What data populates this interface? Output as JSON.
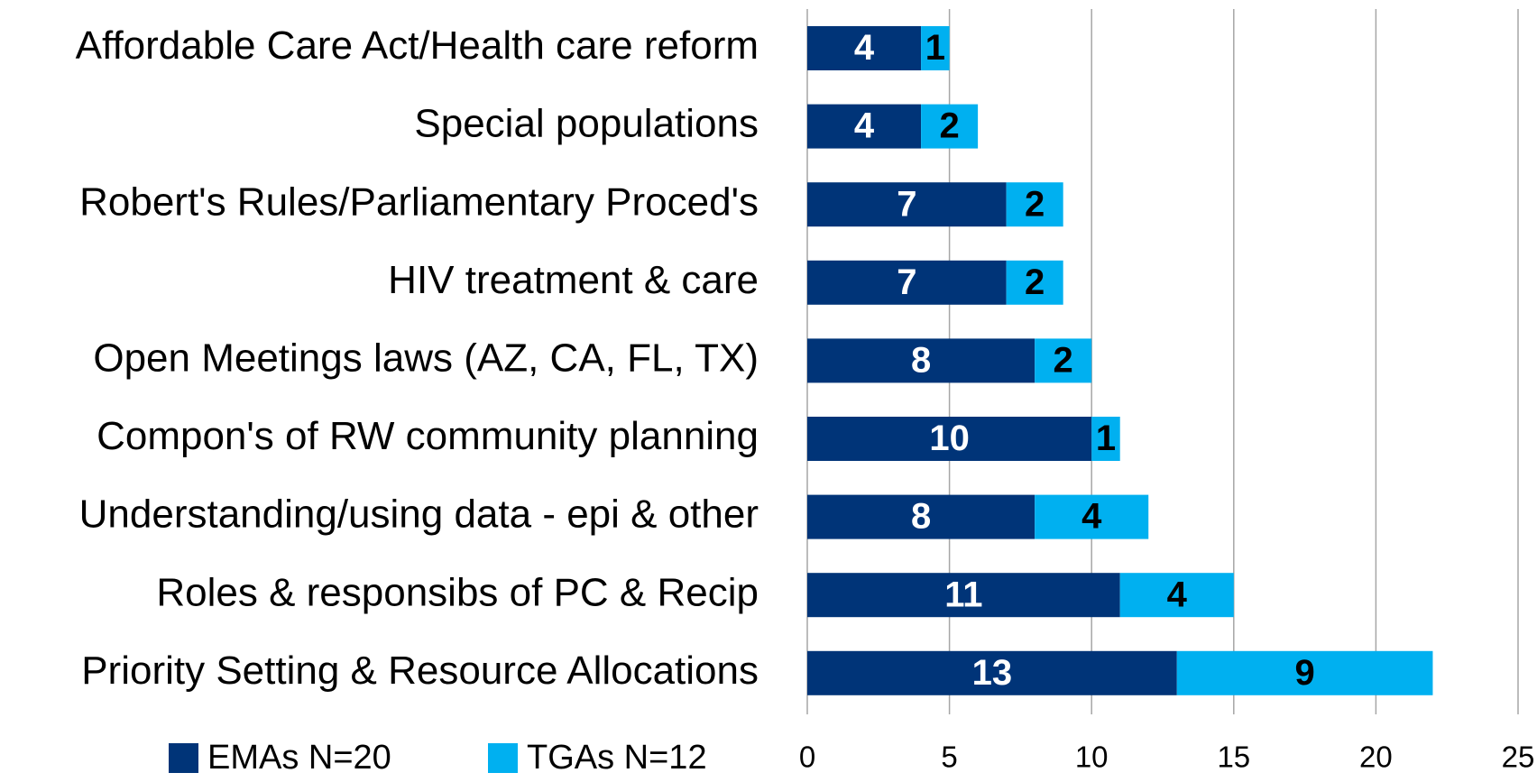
{
  "chart_data": {
    "type": "bar",
    "orientation": "horizontal",
    "stacked": true,
    "categories": [
      "Affordable Care Act/Health care reform",
      "Special populations",
      "Robert's Rules/Parliamentary Proced's",
      "HIV treatment & care",
      "Open Meetings laws (AZ, CA, FL, TX)",
      "Compon's of RW community planning",
      "Understanding/using data - epi & other",
      "Roles & responsibs of PC & Recip",
      "Priority Setting & Resource Allocations"
    ],
    "series": [
      {
        "name": "EMAs N=20",
        "color": "#003478",
        "label_color": "#ffffff",
        "values": [
          4,
          4,
          7,
          7,
          8,
          10,
          8,
          11,
          13
        ]
      },
      {
        "name": "TGAs N=12",
        "color": "#00b0f0",
        "label_color": "#000000",
        "values": [
          1,
          2,
          2,
          2,
          2,
          1,
          4,
          4,
          9
        ]
      }
    ],
    "xlim": [
      0,
      25
    ],
    "xticks": [
      0,
      5,
      10,
      15,
      20,
      25
    ],
    "grid": true,
    "legend": "bottom-left"
  }
}
